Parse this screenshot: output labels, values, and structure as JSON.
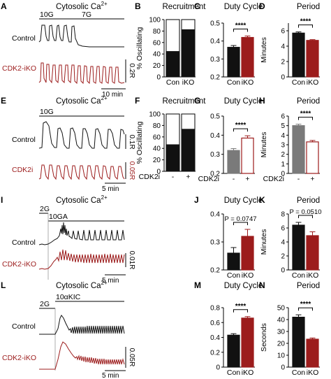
{
  "colors": {
    "black": "#111111",
    "red": "#9c1c1c",
    "grey": "#7a7a7a",
    "bar_black": "#111111",
    "bar_red": "#9c1c1c"
  },
  "row_a": {
    "letter": "A",
    "title": "Cytosolic Ca",
    "title_sup": "2+",
    "stim1": "10G",
    "stim2": "7G",
    "trace1": "Control",
    "trace2": "CDK2-iKO",
    "scale_y": "0.2R",
    "scale_x": "10 min"
  },
  "row_e": {
    "letter": "E",
    "title": "Cytosolic Ca",
    "title_sup": "2+",
    "stim1": "10G",
    "trace1": "Control",
    "trace2": "CDK2i",
    "scale_y1": "0.1R",
    "scale_y2": "0.05R",
    "scale_x": "5 min"
  },
  "row_i": {
    "letter": "I",
    "title": "Cytosolic Ca",
    "title_sup": "2+",
    "stim1": "2G",
    "stim2": "10GA",
    "trace1": "Control",
    "trace2": "CDK2-iKO",
    "scale_y": "0.01R",
    "scale_x": "5 min"
  },
  "row_l": {
    "letter": "L",
    "title": "Cytosolic Ca",
    "title_sup": "2+",
    "stim1": "2G",
    "stim2": "10αKIC",
    "trace1": "Control",
    "trace2": "CDK2-iKO",
    "scale_y": "0.05R",
    "scale_x": "5 min"
  },
  "chart_data": [
    {
      "panel": "B",
      "type": "bar",
      "title": "Recruitment",
      "ylabel": "% Oscillating",
      "categories": [
        "Con",
        "iKO"
      ],
      "values": [
        45,
        83
      ],
      "ylim": [
        0,
        100
      ],
      "yticks": [
        0,
        20,
        40,
        60,
        80,
        100
      ]
    },
    {
      "panel": "C",
      "type": "bar",
      "title": "Duty Cycle",
      "ylabel": "",
      "categories": [
        "Con",
        "iKO"
      ],
      "values": [
        0.365,
        0.42
      ],
      "errors": [
        0.01,
        0.008
      ],
      "ylim": [
        0.2,
        0.5
      ],
      "yticks": [
        0.2,
        0.3,
        0.4,
        0.5
      ],
      "significance": "****"
    },
    {
      "panel": "D",
      "type": "bar",
      "title": "Period",
      "ylabel": "Minutes",
      "categories": [
        "Con",
        "iKO"
      ],
      "values": [
        5.7,
        4.75
      ],
      "errors": [
        0.15,
        0.1
      ],
      "ylim": [
        0,
        7
      ],
      "yticks": [
        0,
        2,
        4,
        6
      ],
      "significance": "****"
    },
    {
      "panel": "F",
      "type": "bar",
      "title": "Recruitment",
      "ylabel": "% Oscillating",
      "categories": [
        "-",
        "+"
      ],
      "group_label": "CDK2i",
      "values": [
        47,
        74
      ],
      "ylim": [
        0,
        100
      ],
      "yticks": [
        0,
        20,
        40,
        60,
        80,
        100
      ]
    },
    {
      "panel": "G",
      "type": "bar",
      "title": "Duty Cycle",
      "ylabel": "",
      "categories": [
        "-",
        "+"
      ],
      "group_label": "CDK2i",
      "values": [
        0.32,
        0.385
      ],
      "errors": [
        0.01,
        0.012
      ],
      "ylim": [
        0.2,
        0.5
      ],
      "yticks": [
        0.2,
        0.3,
        0.4,
        0.5
      ],
      "significance": "****"
    },
    {
      "panel": "H",
      "type": "bar",
      "title": "Period",
      "ylabel": "Minutes",
      "categories": [
        "-",
        "+"
      ],
      "group_label": "CDK2i",
      "values": [
        5.0,
        3.3
      ],
      "errors": [
        0.15,
        0.15
      ],
      "ylim": [
        0,
        6
      ],
      "yticks": [
        0,
        1,
        2,
        3,
        4,
        5,
        6
      ],
      "significance": "****"
    },
    {
      "panel": "J",
      "type": "bar",
      "title": "Duty Cycle",
      "ylabel": "",
      "categories": [
        "Con",
        "iKO"
      ],
      "values": [
        0.26,
        0.32
      ],
      "errors": [
        0.02,
        0.025
      ],
      "ylim": [
        0.2,
        0.4
      ],
      "yticks": [
        0.2,
        0.3,
        0.4
      ],
      "significance": "P = 0.0747"
    },
    {
      "panel": "K",
      "type": "bar",
      "title": "Period",
      "ylabel": "Minutes",
      "categories": [
        "Con",
        "iKO"
      ],
      "values": [
        6.4,
        4.9
      ],
      "errors": [
        0.4,
        0.55
      ],
      "ylim": [
        0,
        8
      ],
      "yticks": [
        0,
        2,
        4,
        6,
        8
      ],
      "significance": "P = 0.0510"
    },
    {
      "panel": "M",
      "type": "bar",
      "title": "Duty Cycle",
      "ylabel": "",
      "categories": [
        "Con",
        "iKO"
      ],
      "values": [
        0.43,
        0.66
      ],
      "errors": [
        0.02,
        0.02
      ],
      "ylim": [
        0,
        0.8
      ],
      "yticks": [
        0,
        0.2,
        0.4,
        0.6,
        0.8
      ],
      "significance": "****"
    },
    {
      "panel": "N",
      "type": "bar",
      "title": "Period",
      "ylabel": "Seconds",
      "categories": [
        "Con",
        "iKO"
      ],
      "values": [
        42,
        23.5
      ],
      "errors": [
        2,
        1
      ],
      "ylim": [
        0,
        50
      ],
      "yticks": [
        0,
        10,
        20,
        30,
        40,
        50
      ],
      "significance": "****"
    }
  ]
}
